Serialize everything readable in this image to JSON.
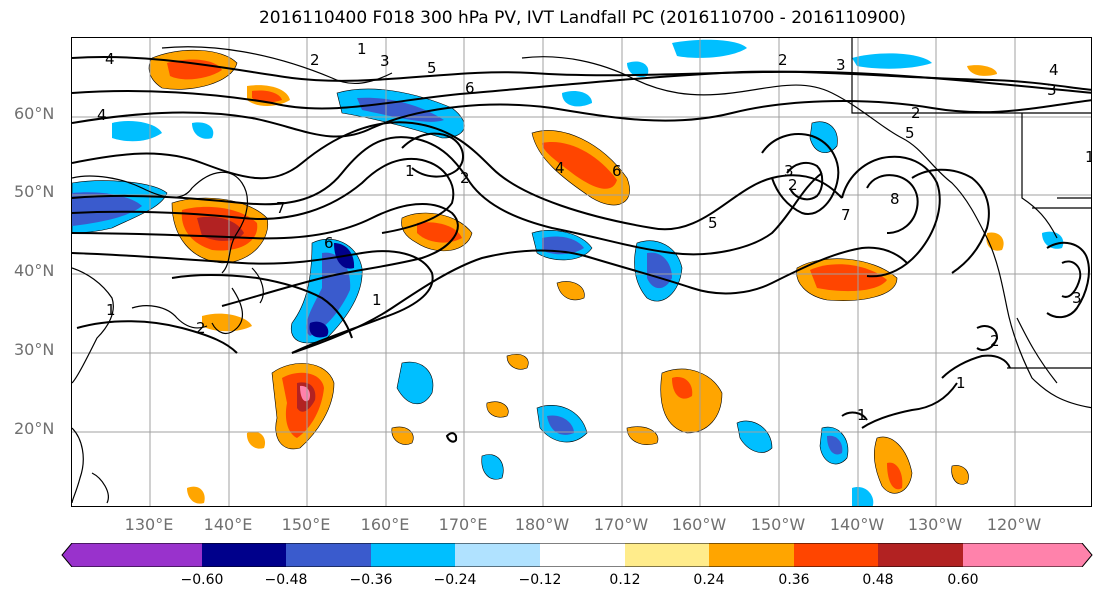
{
  "title": "2016110400 F018 300 hPa PV, IVT Landfall PC (2016110700 - 2016110900)",
  "lat_labels": [
    "60°N",
    "50°N",
    "40°N",
    "30°N",
    "20°N"
  ],
  "lon_labels": [
    "130°E",
    "140°E",
    "150°E",
    "160°E",
    "170°E",
    "180°W",
    "170°W",
    "160°W",
    "150°W",
    "140°W",
    "130°W",
    "120°W"
  ],
  "contour_labels": [
    "1",
    "2",
    "3",
    "4",
    "5",
    "6",
    "7",
    "8"
  ],
  "colorbar": {
    "tick_labels": [
      "−0.60",
      "−0.48",
      "−0.36",
      "−0.24",
      "−0.12",
      "0.12",
      "0.24",
      "0.36",
      "0.48",
      "0.60"
    ],
    "colors": [
      "#9932cc",
      "#00008b",
      "#3a5bcd",
      "#00bfff",
      "#b0e2ff",
      "#ffffff",
      "#ffec8b",
      "#ffa500",
      "#ff4500",
      "#b22222",
      "#ff82ab"
    ]
  },
  "colors": {
    "neg_strong": "#00008b",
    "neg_mid": "#3a5bcd",
    "neg_light": "#00bfff",
    "neg_pale": "#b0e2ff",
    "pos_pale": "#ffec8b",
    "pos_light": "#ffa500",
    "pos_mid": "#ff4500",
    "pos_strong": "#b22222",
    "pos_max": "#ff82ab",
    "grid": "#a0a0a0",
    "contour": "#000000",
    "coast": "#000000"
  }
}
